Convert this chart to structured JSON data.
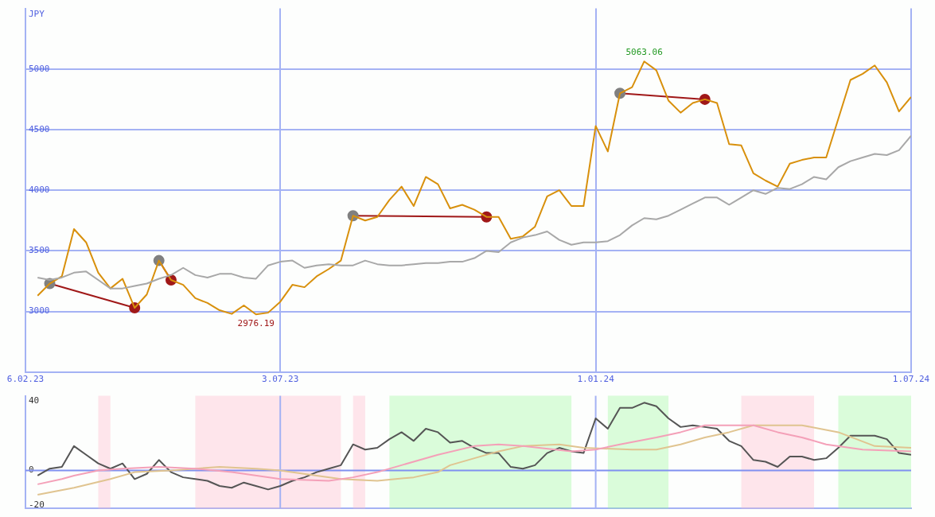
{
  "chart_data": [
    {
      "type": "line",
      "ylabel": "JPY",
      "xlim": [
        "2023-02-06",
        "2024-07-01"
      ],
      "xticks": [
        {
          "value": "2023-02-06",
          "label": "6.02.23"
        },
        {
          "value": "2023-07-03",
          "label": "3.07.23"
        },
        {
          "value": "2024-01-01",
          "label": "1.01.24"
        },
        {
          "value": "2024-07-01",
          "label": "1.07.24"
        }
      ],
      "ylim": [
        2500,
        5500
      ],
      "yticks": [
        3000,
        3500,
        4000,
        4500,
        5000
      ],
      "grid": true,
      "marker": "none",
      "x": [
        "2023-02-13",
        "2023-02-20",
        "2023-02-27",
        "2023-03-06",
        "2023-03-13",
        "2023-03-20",
        "2023-03-27",
        "2023-04-03",
        "2023-04-10",
        "2023-04-17",
        "2023-04-24",
        "2023-05-01",
        "2023-05-08",
        "2023-05-15",
        "2023-05-22",
        "2023-05-29",
        "2023-06-05",
        "2023-06-12",
        "2023-06-19",
        "2023-06-26",
        "2023-07-03",
        "2023-07-10",
        "2023-07-17",
        "2023-07-24",
        "2023-07-31",
        "2023-08-07",
        "2023-08-14",
        "2023-08-21",
        "2023-08-28",
        "2023-09-04",
        "2023-09-11",
        "2023-09-18",
        "2023-09-25",
        "2023-10-02",
        "2023-10-09",
        "2023-10-16",
        "2023-10-23",
        "2023-10-30",
        "2023-11-06",
        "2023-11-13",
        "2023-11-20",
        "2023-11-27",
        "2023-12-04",
        "2023-12-11",
        "2023-12-18",
        "2023-12-25",
        "2024-01-01",
        "2024-01-08",
        "2024-01-15",
        "2024-01-22",
        "2024-01-29",
        "2024-02-05",
        "2024-02-12",
        "2024-02-19",
        "2024-02-26",
        "2024-03-04",
        "2024-03-11",
        "2024-03-18",
        "2024-03-25",
        "2024-04-01",
        "2024-04-08",
        "2024-04-15",
        "2024-04-22",
        "2024-04-29",
        "2024-05-06",
        "2024-05-13",
        "2024-05-20",
        "2024-05-27",
        "2024-06-03",
        "2024-06-10",
        "2024-06-17",
        "2024-06-24",
        "2024-07-01"
      ],
      "series": [
        {
          "color": "#a8a8a8",
          "values": [
            3280,
            3260,
            3280,
            3320,
            3330,
            3260,
            3190,
            3190,
            3210,
            3230,
            3270,
            3300,
            3360,
            3300,
            3280,
            3310,
            3310,
            3280,
            3270,
            3380,
            3410,
            3420,
            3360,
            3380,
            3390,
            3380,
            3380,
            3420,
            3390,
            3380,
            3380,
            3390,
            3400,
            3400,
            3410,
            3410,
            3440,
            3500,
            3490,
            3570,
            3610,
            3630,
            3660,
            3590,
            3550,
            3570,
            3570,
            3580,
            3630,
            3710,
            3770,
            3760,
            3790,
            3840,
            3890,
            3940,
            3940,
            3880,
            3940,
            4000,
            3970,
            4020,
            4010,
            4050,
            4110,
            4090,
            4190,
            4240,
            4270,
            4300,
            4290,
            4330,
            4450
          ]
        },
        {
          "color": "#d8900c",
          "values": [
            3130,
            3230,
            3290,
            3680,
            3570,
            3320,
            3190,
            3270,
            3030,
            3140,
            3420,
            3260,
            3220,
            3110,
            3070,
            3010,
            2980,
            3050,
            2976.19,
            2990,
            3080,
            3220,
            3200,
            3290,
            3350,
            3420,
            3790,
            3750,
            3780,
            3920,
            4030,
            3870,
            4110,
            4050,
            3850,
            3880,
            3840,
            3780,
            3780,
            3600,
            3620,
            3700,
            3950,
            4000,
            3870,
            3870,
            4530,
            4320,
            4800,
            4850,
            5063.06,
            4990,
            4740,
            4640,
            4720,
            4750,
            4720,
            4380,
            4370,
            4140,
            4080,
            4030,
            4220,
            4250,
            4270,
            4270,
            4590,
            4910,
            4960,
            5030,
            4890,
            4650,
            4770
          ]
        },
        {
          "color": "#a01818",
          "marker": "circle",
          "x": [
            "2023-02-20",
            "2023-04-10",
            "2023-04-17",
            "2023-04-24",
            "2023-05-01",
            "2023-05-08",
            "2023-08-14",
            "2023-10-30",
            "2023-11-06",
            "2024-01-15",
            "2024-03-04"
          ],
          "values": [
            3230,
            3030,
            null,
            3420,
            3260,
            null,
            3790,
            3780,
            null,
            4800,
            4750
          ],
          "colors": [
            "#808080",
            "#a01818",
            "#808080",
            "#808080",
            "#a01818",
            "#808080",
            "#808080",
            "#a01818",
            "#808080",
            "#808080",
            "#a01818"
          ]
        }
      ],
      "annotations": [
        {
          "text": "5063.06",
          "x": "2024-01-29",
          "y": 5063.06
        },
        {
          "text": "2976.19",
          "x": "2023-06-19",
          "y": 2976.19
        }
      ]
    },
    {
      "type": "line",
      "xlim": [
        "2023-02-06",
        "2024-07-01"
      ],
      "tick_labels": "y",
      "ylim": [
        -22,
        43
      ],
      "yticks": [
        40,
        0,
        -20
      ],
      "marker": "none",
      "ref_lines": [
        {
          "axis": "y",
          "value": 0,
          "color": "#8090f0"
        },
        {
          "axis": "x",
          "value": "2023-07-03",
          "color": "#a4b2f4"
        },
        {
          "axis": "x",
          "value": "2024-01-01",
          "color": "#a4b2f4"
        }
      ],
      "bands": [
        {
          "axis": "x",
          "from": "2023-03-20",
          "to": "2023-03-27",
          "color": "#ffb6c8"
        },
        {
          "axis": "x",
          "from": "2023-05-15",
          "to": "2023-08-07",
          "color": "#ffb6c8"
        },
        {
          "axis": "x",
          "from": "2023-08-14",
          "to": "2023-08-21",
          "color": "#ffb6c8"
        },
        {
          "axis": "x",
          "from": "2023-09-04",
          "to": "2023-12-18",
          "color": "#98f898"
        },
        {
          "axis": "x",
          "from": "2024-01-08",
          "to": "2024-02-12",
          "color": "#98f898"
        },
        {
          "axis": "x",
          "from": "2024-03-25",
          "to": "2024-05-06",
          "color": "#ffb6c8"
        },
        {
          "axis": "x",
          "from": "2024-05-20",
          "to": "2024-07-01",
          "color": "#98f898"
        }
      ],
      "x": [
        "2023-02-13",
        "2023-02-20",
        "2023-02-27",
        "2023-03-06",
        "2023-03-13",
        "2023-03-20",
        "2023-03-27",
        "2023-04-03",
        "2023-04-10",
        "2023-04-17",
        "2023-04-24",
        "2023-05-01",
        "2023-05-08",
        "2023-05-15",
        "2023-05-22",
        "2023-05-29",
        "2023-06-05",
        "2023-06-12",
        "2023-06-19",
        "2023-06-26",
        "2023-07-03",
        "2023-07-10",
        "2023-07-17",
        "2023-07-24",
        "2023-07-31",
        "2023-08-07",
        "2023-08-14",
        "2023-08-21",
        "2023-08-28",
        "2023-09-04",
        "2023-09-11",
        "2023-09-18",
        "2023-09-25",
        "2023-10-02",
        "2023-10-09",
        "2023-10-16",
        "2023-10-23",
        "2023-10-30",
        "2023-11-06",
        "2023-11-13",
        "2023-11-20",
        "2023-11-27",
        "2023-12-04",
        "2023-12-11",
        "2023-12-18",
        "2023-12-25",
        "2024-01-01",
        "2024-01-08",
        "2024-01-15",
        "2024-01-22",
        "2024-01-29",
        "2024-02-05",
        "2024-02-12",
        "2024-02-19",
        "2024-02-26",
        "2024-03-04",
        "2024-03-11",
        "2024-03-18",
        "2024-03-25",
        "2024-04-01",
        "2024-04-08",
        "2024-04-15",
        "2024-04-22",
        "2024-04-29",
        "2024-05-06",
        "2024-05-13",
        "2024-05-20",
        "2024-05-27",
        "2024-06-03",
        "2024-06-10",
        "2024-06-17",
        "2024-06-24",
        "2024-07-01"
      ],
      "series": [
        {
          "color": "#f4a0b8",
          "x": [
            "2023-02-13",
            "2023-02-27",
            "2023-03-06",
            "2023-03-20",
            "2023-04-03",
            "2023-04-24",
            "2023-05-15",
            "2023-06-05",
            "2023-07-03",
            "2023-07-31",
            "2023-08-14",
            "2023-08-28",
            "2023-09-11",
            "2023-10-02",
            "2023-10-23",
            "2023-11-06",
            "2023-11-20",
            "2023-12-18",
            "2024-01-01",
            "2024-01-15",
            "2024-02-05",
            "2024-02-19",
            "2024-03-04",
            "2024-03-18",
            "2024-04-01",
            "2024-04-15",
            "2024-04-29",
            "2024-05-13",
            "2024-06-03",
            "2024-07-01"
          ],
          "values": [
            -8,
            -5,
            -3,
            0,
            1,
            2,
            1,
            -1,
            -5,
            -6,
            -4,
            -1,
            3,
            9,
            14,
            15,
            14,
            11,
            12,
            15,
            19,
            22,
            26,
            26,
            26,
            22,
            19,
            15,
            12,
            11
          ]
        },
        {
          "color": "#e0c490",
          "x": [
            "2023-02-13",
            "2023-03-06",
            "2023-03-27",
            "2023-04-10",
            "2023-05-01",
            "2023-05-29",
            "2023-06-19",
            "2023-07-03",
            "2023-07-24",
            "2023-08-07",
            "2023-08-28",
            "2023-09-18",
            "2023-10-02",
            "2023-10-09",
            "2023-10-23",
            "2023-11-06",
            "2023-11-20",
            "2023-12-11",
            "2023-12-25",
            "2024-01-22",
            "2024-02-05",
            "2024-02-19",
            "2024-03-04",
            "2024-03-18",
            "2024-04-01",
            "2024-04-29",
            "2024-05-20",
            "2024-06-10",
            "2024-07-01"
          ],
          "values": [
            -14,
            -10,
            -5,
            -1,
            0,
            2,
            1,
            0,
            -3,
            -5,
            -6,
            -4,
            -1,
            3,
            7,
            11,
            14,
            15,
            13,
            12,
            12,
            15,
            19,
            22,
            26,
            26,
            22,
            14,
            13
          ]
        },
        {
          "color": "#555555",
          "values": [
            -3,
            1,
            2,
            14,
            9,
            4,
            1,
            4,
            -5,
            -2,
            6,
            -1,
            -4,
            -5,
            -6,
            -9,
            -10,
            -7,
            -9,
            -11,
            -9,
            -6,
            -4,
            -1,
            1,
            3,
            15,
            12,
            13,
            18,
            22,
            17,
            24,
            22,
            16,
            17,
            13,
            10,
            10,
            2,
            1,
            3,
            10,
            13,
            11,
            10,
            30,
            24,
            36,
            36,
            39,
            37,
            30,
            25,
            26,
            25,
            24,
            17,
            14,
            6,
            5,
            2,
            8,
            8,
            6,
            7,
            13,
            20,
            20,
            20,
            18,
            10,
            9
          ]
        }
      ]
    }
  ]
}
